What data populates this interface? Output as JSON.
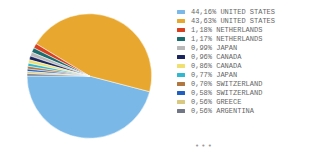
{
  "chart_data": {
    "type": "pie",
    "categories": [
      "44,16% UNITED STATES",
      "43,63% UNITED STATES",
      "1,18% NETHERLANDS",
      "1,17% NETHERLANDS",
      "0,99% JAPAN",
      "0,96% CANADA",
      "0,86% CANADA",
      "0,77% JAPAN",
      "0,70% SWITZERLAND",
      "0,58% SWITZERLAND",
      "0,56% GREECE",
      "0,56% ARGENTINA"
    ],
    "values": [
      44.16,
      43.63,
      1.18,
      1.17,
      0.99,
      0.96,
      0.86,
      0.77,
      0.7,
      0.58,
      0.56,
      0.56
    ],
    "colors": [
      "#7ab8e8",
      "#e8a830",
      "#d94020",
      "#1a6e70",
      "#b8b8b8",
      "#1a2560",
      "#f0e070",
      "#30b8d0",
      "#b07840",
      "#2060c0",
      "#d8c880",
      "#707888"
    ],
    "legend": "right",
    "annotations": [
      "• • •"
    ]
  }
}
